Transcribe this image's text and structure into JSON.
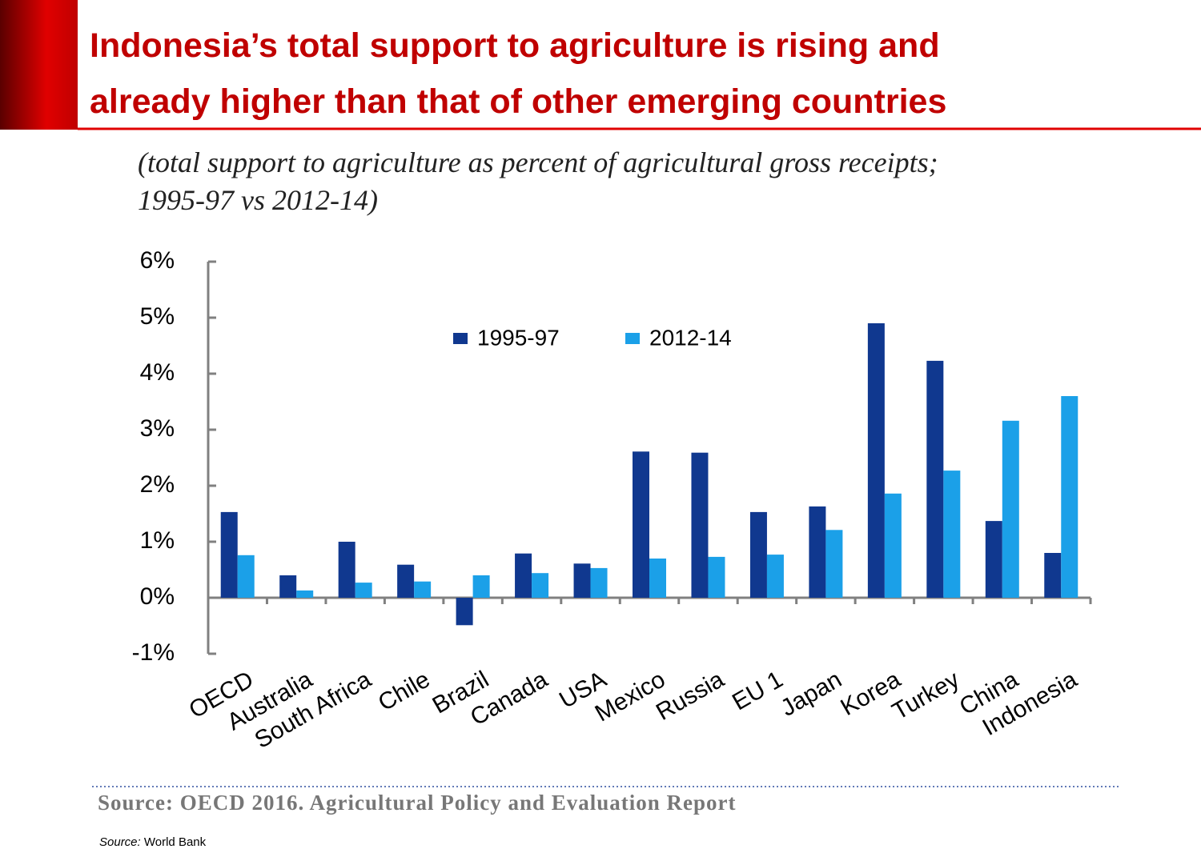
{
  "title": [
    "Indonesia’s total support to agriculture is rising and",
    "already higher than that of other emerging countries"
  ],
  "chart_data": {
    "type": "bar",
    "subtitle": [
      "(total support to agriculture as percent of agricultural gross receipts;",
      "1995-97 vs 2012-14)"
    ],
    "categories": [
      "OECD",
      "Australia",
      "South Africa",
      "Chile",
      "Brazil",
      "Canada",
      "USA",
      "Mexico",
      "Russia",
      "EU 1",
      "Japan",
      "Korea",
      "Turkey",
      "China",
      "Indonesia"
    ],
    "series": [
      {
        "name": "1995-97",
        "color": "#10388f",
        "values": [
          1.53,
          0.4,
          1.0,
          0.59,
          -0.49,
          0.79,
          0.61,
          2.61,
          2.59,
          1.53,
          1.63,
          4.9,
          4.23,
          1.37,
          0.8
        ]
      },
      {
        "name": "2012-14",
        "color": "#1ba0e8",
        "values": [
          0.76,
          0.13,
          0.27,
          0.29,
          0.4,
          0.44,
          0.53,
          0.7,
          0.73,
          0.77,
          1.21,
          1.86,
          2.27,
          3.16,
          3.6
        ]
      }
    ],
    "ylim": [
      -1,
      6
    ],
    "yticks": [
      {
        "value": -1,
        "label": "-1%"
      },
      {
        "value": 0,
        "label": "0%"
      },
      {
        "value": 1,
        "label": "1%"
      },
      {
        "value": 2,
        "label": "2%"
      },
      {
        "value": 3,
        "label": "3%"
      },
      {
        "value": 4,
        "label": "4%"
      },
      {
        "value": 5,
        "label": "5%"
      },
      {
        "value": 6,
        "label": "6%"
      }
    ],
    "grid": false,
    "legend": "top"
  },
  "source_note": "Source: OECD 2016. Agricultural Policy and Evaluation Report",
  "footer": {
    "label": "Source:",
    "text": "World Bank"
  }
}
